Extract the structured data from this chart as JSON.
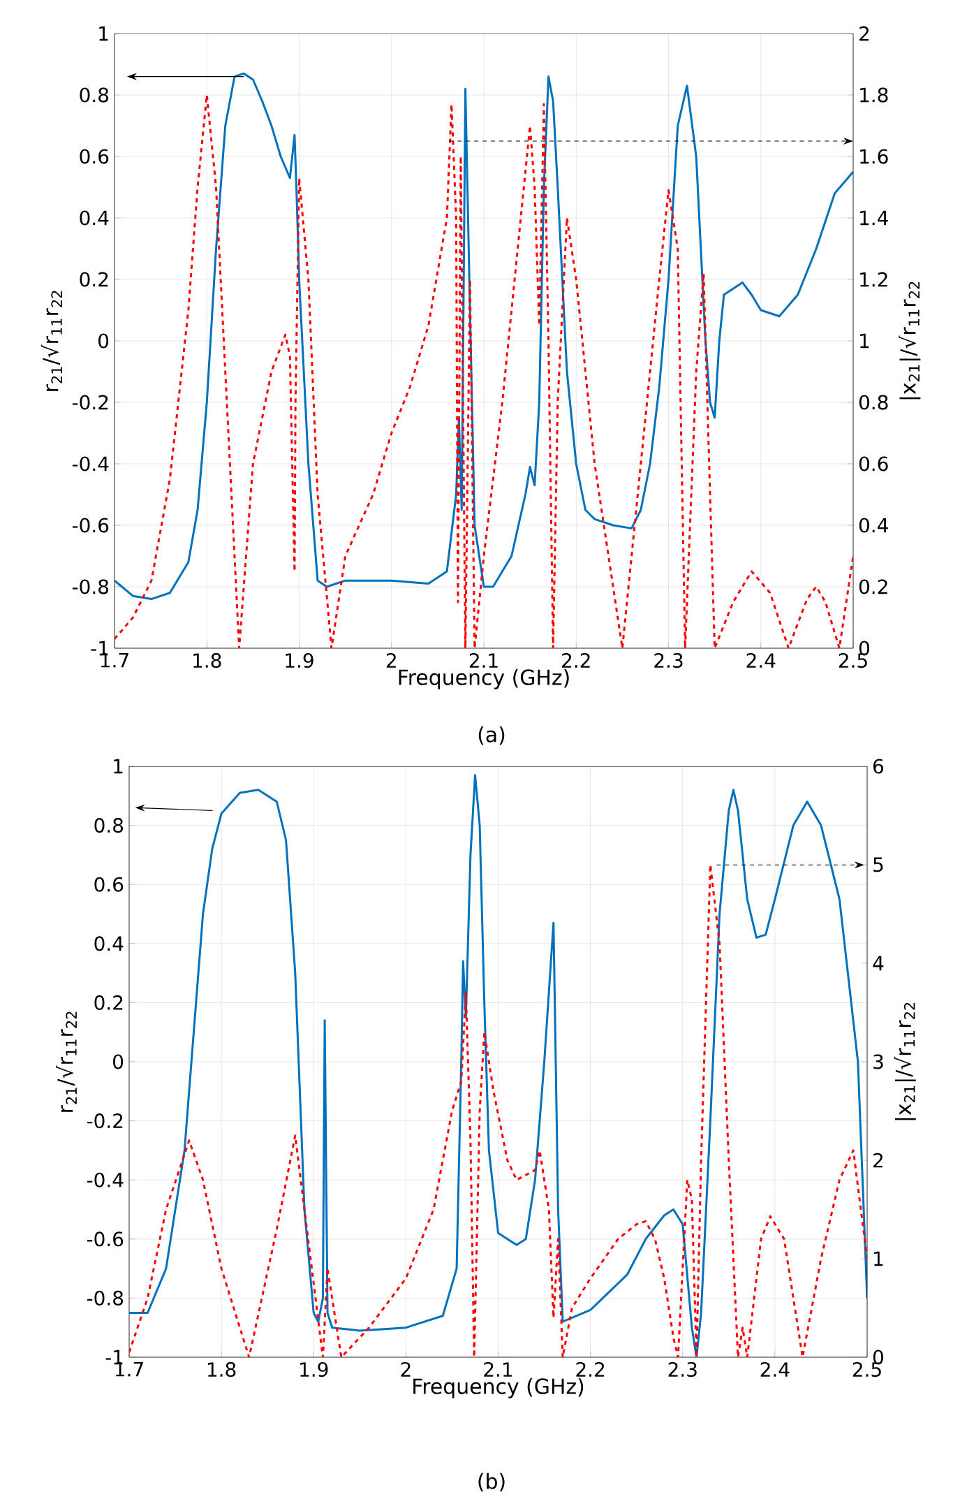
{
  "chart_data": [
    {
      "type": "line",
      "xlabel": "Frequency (GHz)",
      "ylabel": "r$_{21}$/√r$_{11}$r$_{22}$",
      "y2label": "|x$_{21}$|/√r$_{11}$r$_{22}$",
      "annotations": [
        "(a)"
      ],
      "grid": true,
      "xlim": [
        1.7,
        2.5
      ],
      "xticks": [
        1.7,
        1.8,
        1.9,
        2,
        2.1,
        2.2,
        2.3,
        2.4,
        2.5
      ],
      "ylim": [
        -1,
        1
      ],
      "yticks": [
        -1,
        -0.8,
        -0.6,
        -0.4,
        -0.2,
        0,
        0.2,
        0.4,
        0.6,
        0.8,
        1
      ],
      "y2lim": [
        0,
        2
      ],
      "y2ticks": [
        0,
        0.2,
        0.4,
        0.6,
        0.8,
        1,
        1.2,
        1.4,
        1.6,
        1.8,
        2
      ],
      "series": [
        {
          "color": "#0072bd",
          "line_style": "solid",
          "x": [
            1.7,
            1.72,
            1.74,
            1.76,
            1.78,
            1.79,
            1.8,
            1.81,
            1.82,
            1.83,
            1.84,
            1.85,
            1.86,
            1.87,
            1.88,
            1.89,
            1.895,
            1.897,
            1.9,
            1.91,
            1.92,
            1.93,
            1.95,
            2.0,
            2.04,
            2.06,
            2.07,
            2.073,
            2.076,
            2.08,
            2.085,
            2.09,
            2.1,
            2.11,
            2.13,
            2.145,
            2.15,
            2.155,
            2.16,
            2.165,
            2.17,
            2.175,
            2.18,
            2.19,
            2.2,
            2.21,
            2.22,
            2.24,
            2.26,
            2.27,
            2.28,
            2.29,
            2.3,
            2.31,
            2.32,
            2.33,
            2.34,
            2.345,
            2.35,
            2.355,
            2.36,
            2.38,
            2.39,
            2.4,
            2.42,
            2.44,
            2.46,
            2.48,
            2.5
          ],
          "values": [
            -0.78,
            -0.83,
            -0.84,
            -0.82,
            -0.72,
            -0.55,
            -0.2,
            0.3,
            0.7,
            0.86,
            0.87,
            0.85,
            0.78,
            0.7,
            0.6,
            0.53,
            0.67,
            0.5,
            0.2,
            -0.4,
            -0.78,
            -0.8,
            -0.78,
            -0.78,
            -0.79,
            -0.75,
            -0.5,
            -0.25,
            -0.55,
            0.82,
            0.1,
            -0.6,
            -0.8,
            -0.8,
            -0.7,
            -0.5,
            -0.41,
            -0.47,
            -0.2,
            0.5,
            0.86,
            0.78,
            0.5,
            -0.1,
            -0.4,
            -0.55,
            -0.58,
            -0.6,
            -0.61,
            -0.55,
            -0.4,
            -0.15,
            0.2,
            0.7,
            0.83,
            0.6,
            0.0,
            -0.2,
            -0.25,
            0.0,
            0.15,
            0.19,
            0.15,
            0.1,
            0.08,
            0.15,
            0.3,
            0.48,
            0.55
          ]
        },
        {
          "color": "#ff0000",
          "line_style": "dashed",
          "axis": "y2",
          "x": [
            1.7,
            1.72,
            1.74,
            1.76,
            1.78,
            1.79,
            1.8,
            1.81,
            1.82,
            1.83,
            1.835,
            1.85,
            1.87,
            1.885,
            1.89,
            1.895,
            1.896,
            1.9,
            1.91,
            1.92,
            1.935,
            1.95,
            1.98,
            2.0,
            2.02,
            2.04,
            2.06,
            2.065,
            2.07,
            2.072,
            2.075,
            2.08,
            2.085,
            2.09,
            2.1,
            2.12,
            2.14,
            2.15,
            2.155,
            2.16,
            2.165,
            2.17,
            2.175,
            2.18,
            2.19,
            2.2,
            2.22,
            2.25,
            2.27,
            2.29,
            2.3,
            2.31,
            2.318,
            2.33,
            2.338,
            2.345,
            2.35,
            2.37,
            2.39,
            2.41,
            2.43,
            2.45,
            2.46,
            2.47,
            2.485,
            2.5
          ],
          "values": [
            0.03,
            0.1,
            0.22,
            0.55,
            1.1,
            1.5,
            1.8,
            1.5,
            0.9,
            0.3,
            0.0,
            0.6,
            0.9,
            1.02,
            0.95,
            0.25,
            0.8,
            1.53,
            1.2,
            0.5,
            0.0,
            0.3,
            0.5,
            0.7,
            0.85,
            1.05,
            1.4,
            1.77,
            1.4,
            0.15,
            1.6,
            0.0,
            1.2,
            0.0,
            0.3,
            0.8,
            1.4,
            1.7,
            1.5,
            1.05,
            1.77,
            1.0,
            0.0,
            0.8,
            1.4,
            1.2,
            0.6,
            0.0,
            0.6,
            1.2,
            1.49,
            1.3,
            0.0,
            0.9,
            1.22,
            0.5,
            0.0,
            0.15,
            0.25,
            0.18,
            0.0,
            0.16,
            0.2,
            0.15,
            0.0,
            0.3
          ]
        }
      ]
    },
    {
      "type": "line",
      "xlabel": "Frequency (GHz)",
      "ylabel": "r$_{21}$/√r$_{11}$r$_{22}$",
      "y2label": "|x$_{21}$|/√r$_{11}$r$_{22}$",
      "annotations": [
        "(b)"
      ],
      "grid": true,
      "xlim": [
        1.7,
        2.5
      ],
      "xticks": [
        1.7,
        1.8,
        1.9,
        2,
        2.1,
        2.2,
        2.3,
        2.4,
        2.5
      ],
      "ylim": [
        -1,
        1
      ],
      "yticks": [
        -1,
        -0.8,
        -0.6,
        -0.4,
        -0.2,
        0,
        0.2,
        0.4,
        0.6,
        0.8,
        1
      ],
      "y2lim": [
        0,
        6
      ],
      "y2ticks": [
        0,
        1,
        2,
        3,
        4,
        5,
        6
      ],
      "series": [
        {
          "color": "#0072bd",
          "line_style": "solid",
          "x": [
            1.7,
            1.72,
            1.74,
            1.76,
            1.77,
            1.78,
            1.79,
            1.8,
            1.82,
            1.84,
            1.86,
            1.87,
            1.88,
            1.89,
            1.9,
            1.905,
            1.91,
            1.912,
            1.915,
            1.92,
            1.95,
            2.0,
            2.04,
            2.055,
            2.06,
            2.062,
            2.065,
            2.07,
            2.075,
            2.08,
            2.085,
            2.09,
            2.1,
            2.12,
            2.13,
            2.14,
            2.15,
            2.16,
            2.165,
            2.17,
            2.2,
            2.24,
            2.26,
            2.28,
            2.29,
            2.3,
            2.31,
            2.315,
            2.32,
            2.33,
            2.34,
            2.35,
            2.355,
            2.36,
            2.37,
            2.38,
            2.39,
            2.4,
            2.42,
            2.435,
            2.45,
            2.47,
            2.49,
            2.5
          ],
          "values": [
            -0.85,
            -0.85,
            -0.7,
            -0.3,
            0.1,
            0.5,
            0.72,
            0.84,
            0.91,
            0.92,
            0.88,
            0.75,
            0.3,
            -0.5,
            -0.85,
            -0.88,
            -0.8,
            0.14,
            -0.85,
            -0.9,
            -0.91,
            -0.9,
            -0.86,
            -0.7,
            0.0,
            0.34,
            0.15,
            0.7,
            0.97,
            0.8,
            0.2,
            -0.3,
            -0.58,
            -0.62,
            -0.6,
            -0.4,
            0.0,
            0.47,
            -0.5,
            -0.88,
            -0.84,
            -0.72,
            -0.6,
            -0.52,
            -0.5,
            -0.55,
            -0.9,
            -1.0,
            -0.85,
            -0.2,
            0.5,
            0.85,
            0.92,
            0.85,
            0.55,
            0.42,
            0.43,
            0.55,
            0.8,
            0.88,
            0.8,
            0.55,
            0.0,
            -0.8
          ]
        },
        {
          "color": "#ff0000",
          "line_style": "dashed",
          "axis": "y2",
          "x": [
            1.7,
            1.72,
            1.74,
            1.765,
            1.78,
            1.8,
            1.83,
            1.86,
            1.88,
            1.89,
            1.91,
            1.915,
            1.93,
            1.96,
            2.0,
            2.03,
            2.05,
            2.06,
            2.065,
            2.07,
            2.074,
            2.08,
            2.085,
            2.095,
            2.11,
            2.12,
            2.14,
            2.145,
            2.155,
            2.16,
            2.165,
            2.17,
            2.18,
            2.2,
            2.23,
            2.25,
            2.26,
            2.27,
            2.28,
            2.29,
            2.295,
            2.305,
            2.31,
            2.315,
            2.32,
            2.33,
            2.34,
            2.35,
            2.36,
            2.365,
            2.37,
            2.385,
            2.395,
            2.41,
            2.43,
            2.45,
            2.47,
            2.485,
            2.5
          ],
          "values": [
            0.05,
            0.6,
            1.5,
            2.2,
            1.8,
            0.9,
            0.0,
            1.3,
            2.25,
            1.5,
            0.0,
            0.9,
            0.0,
            0.3,
            0.8,
            1.5,
            2.5,
            2.8,
            3.7,
            2.2,
            0.0,
            2.5,
            3.3,
            2.7,
            2.0,
            1.8,
            1.9,
            2.1,
            1.5,
            0.4,
            1.2,
            0.0,
            0.5,
            0.8,
            1.2,
            1.35,
            1.38,
            1.2,
            0.8,
            0.2,
            0.0,
            1.8,
            1.6,
            0.0,
            2.0,
            5.0,
            4.2,
            2.0,
            0.0,
            0.3,
            0.0,
            1.2,
            1.43,
            1.2,
            0.0,
            1.0,
            1.8,
            2.1,
            1.0
          ]
        }
      ]
    }
  ]
}
